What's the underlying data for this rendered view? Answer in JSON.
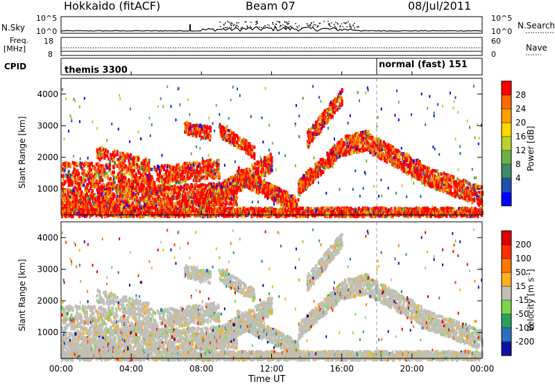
{
  "header": {
    "left": "Hokkaido (fitACF)",
    "center": "Beam 07",
    "right": "08/Jul/2011"
  },
  "panels": {
    "nsky": {
      "label": "N.Sky",
      "ticks_left": [
        "10^5",
        "10^0"
      ],
      "ticks_right": [
        "10^5",
        "10^0"
      ],
      "right_label": "N.Search"
    },
    "freq": {
      "label_line1": "Freq.",
      "label_line2": "[MHz]",
      "ticks_left": [
        "18",
        "8"
      ],
      "ticks_right": [
        "60",
        "0"
      ],
      "right_label": "Nave"
    },
    "cpid": {
      "label": "CPID",
      "segments": [
        {
          "name": "themis 3300",
          "start_hour": 0,
          "end_hour": 18
        },
        {
          "name": "normal (fast) 151",
          "start_hour": 18,
          "end_hour": 24
        }
      ]
    }
  },
  "colors": {
    "power": [
      "#0000ff",
      "#1c4fb0",
      "#3b8a6a",
      "#6ab04a",
      "#b8d230",
      "#ffd700",
      "#ffa000",
      "#ff6a00",
      "#ff0000"
    ],
    "velocity": [
      "#1010a0",
      "#2a6fc0",
      "#2aa060",
      "#7cd64a",
      "#c0c0b8",
      "#ffb020",
      "#ff7a00",
      "#ff3000",
      "#e00000"
    ]
  },
  "chart_data": [
    {
      "type": "heatmap",
      "title": "Power [dB]",
      "ylabel": "Slant Range [km]",
      "xlabel": "Time UT",
      "x_ticks": [
        "00:00",
        "04:00",
        "08:00",
        "12:00",
        "16:00",
        "20:00",
        "00:00"
      ],
      "y_ticks": [
        "1000",
        "2000",
        "3000",
        "4000"
      ],
      "colorbar_ticks": [
        "28",
        "24",
        "20",
        "16",
        "12",
        "8",
        "4"
      ],
      "xlim_hours": [
        0,
        24
      ],
      "ylim_km": [
        180,
        4500
      ],
      "colorbar_label": "Power [dB]"
    },
    {
      "type": "heatmap",
      "title": "Velocity [m s^-1]",
      "ylabel": "Slant Range [km]",
      "xlabel": "Time UT",
      "x_ticks": [
        "00:00",
        "04:00",
        "08:00",
        "12:00",
        "16:00",
        "20:00",
        "00:00"
      ],
      "y_ticks": [
        "1000",
        "2000",
        "3000",
        "4000"
      ],
      "colorbar_ticks": [
        "200",
        "100",
        "50",
        "15",
        "-15",
        "-50",
        "-100",
        "-200"
      ],
      "xlim_hours": [
        0,
        24
      ],
      "ylim_km": [
        180,
        4500
      ],
      "colorbar_label_main": "Velocity [m s",
      "colorbar_label_sup": "-1",
      "colorbar_label_end": "]"
    }
  ],
  "xaxis_label": "Time UT"
}
